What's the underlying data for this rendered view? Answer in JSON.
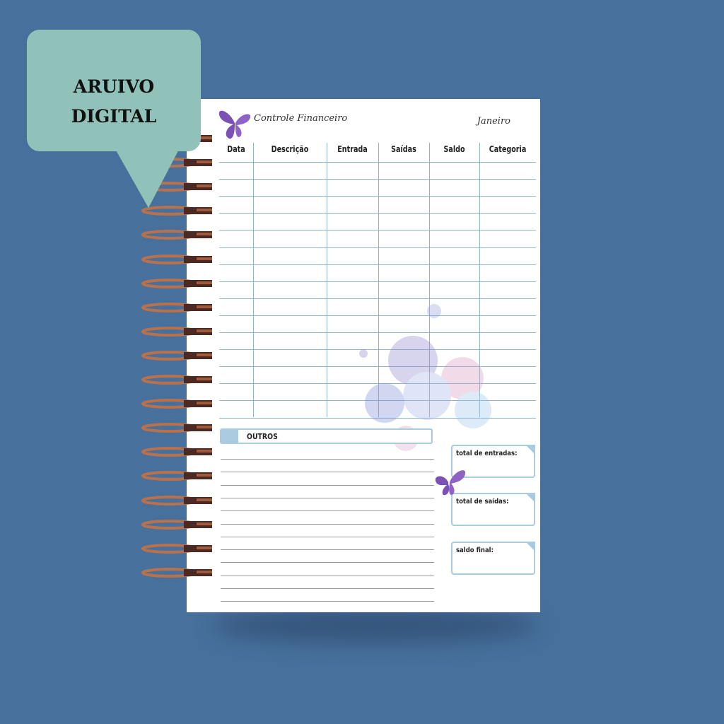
{
  "badge": {
    "line1": "ARUIVO",
    "line2": "DIGITAL"
  },
  "page": {
    "title": "Controle Financeiro",
    "month": "Janeiro",
    "columns": [
      "Data",
      "Descrição",
      "Entrada",
      "Saídas",
      "Saldo",
      "Categoria"
    ],
    "outros_label": "OUTROS",
    "totals": [
      "total de entradas:",
      "total de saídas:",
      "saldo final:"
    ]
  },
  "colors": {
    "background": "#47709c",
    "bubble": "#90c2b9",
    "accent": "#a8cbe0",
    "rings": "#b8714a",
    "butterfly": "#7a4fb0"
  }
}
